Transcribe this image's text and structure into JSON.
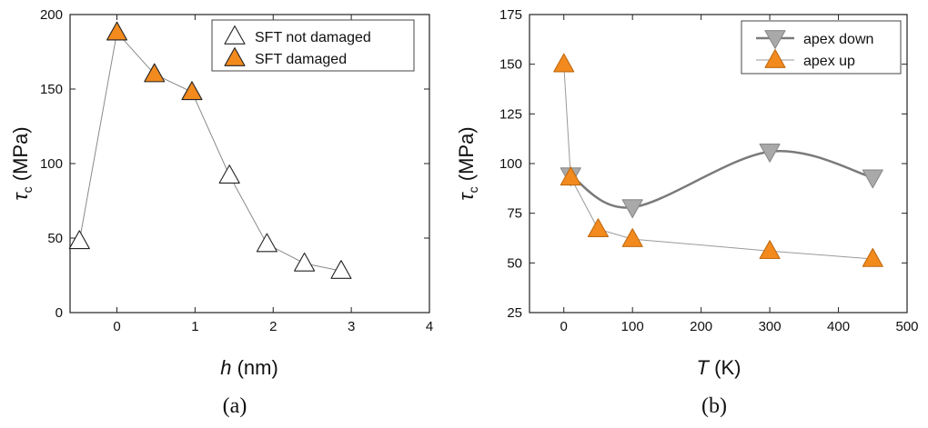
{
  "chart_data": [
    {
      "type": "scatter",
      "panel_label": "(a)",
      "xlabel": {
        "var": "h",
        "unit": " (nm)"
      },
      "ylabel": {
        "var": "τ",
        "sub": "c",
        "unit": " (MPa)"
      },
      "xlim": [
        -0.6,
        4
      ],
      "ylim": [
        0,
        200
      ],
      "xticks": [
        0,
        1,
        2,
        3,
        4
      ],
      "xticks_labeled": true,
      "yticks": [
        0,
        50,
        100,
        150,
        200
      ],
      "grid": false,
      "legend_position": "top-right",
      "connector": {
        "x": [
          -0.48,
          0.0,
          0.48,
          0.96,
          1.44,
          1.92,
          2.4,
          2.87
        ],
        "y": [
          48,
          188,
          160,
          148,
          92,
          46,
          33,
          28
        ],
        "color": "#8a8a8a"
      },
      "series": [
        {
          "name": "SFT not damaged",
          "marker": "triangle-up",
          "fill": "#ffffff",
          "stroke": "#222222",
          "x": [
            -0.48,
            1.44,
            1.92,
            2.4,
            2.87
          ],
          "y": [
            48,
            92,
            46,
            33,
            28
          ]
        },
        {
          "name": "SFT damaged",
          "marker": "triangle-up",
          "fill": "#f28a1e",
          "stroke": "#222222",
          "x": [
            0.0,
            0.48,
            0.96
          ],
          "y": [
            188,
            160,
            148
          ]
        }
      ]
    },
    {
      "type": "scatter",
      "panel_label": "(b)",
      "xlabel": {
        "var": "T",
        "unit": " (K)"
      },
      "ylabel": {
        "var": "τ",
        "sub": "c",
        "unit": " (MPa)"
      },
      "xlim": [
        -50,
        500
      ],
      "ylim": [
        25,
        175
      ],
      "xticks": [
        0,
        100,
        200,
        300,
        400,
        500
      ],
      "yticks": [
        25,
        50,
        75,
        100,
        125,
        150,
        175
      ],
      "grid": false,
      "legend_position": "top-right",
      "series": [
        {
          "name": "apex down",
          "marker": "triangle-down",
          "fill": "#a9a9a9",
          "stroke": "#8a8a8a",
          "line": "smooth",
          "line_color": "#7a7a7a",
          "x": [
            10,
            100,
            300,
            450
          ],
          "y": [
            94,
            78,
            106,
            93
          ]
        },
        {
          "name": "apex up",
          "marker": "triangle-up",
          "fill": "#f28a1e",
          "stroke": "#c06a10",
          "line": "straight",
          "line_color": "#9a9a9a",
          "x": [
            0,
            10,
            50,
            100,
            300,
            450
          ],
          "y": [
            150,
            93,
            67,
            62,
            56,
            52
          ]
        }
      ]
    }
  ]
}
